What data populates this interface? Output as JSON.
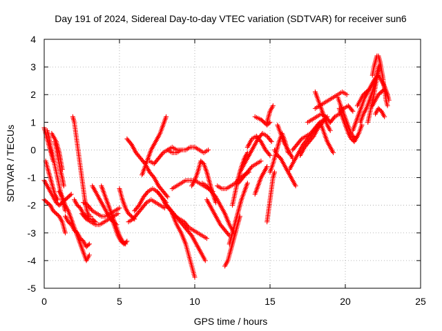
{
  "chart_data": {
    "type": "scatter",
    "title": "Day 191 of 2024, Sidereal Day-to-day VTEC variation (SDTVAR) for receiver sun6",
    "xlabel": "GPS time / hours",
    "ylabel": "SDTVAR / TECUs",
    "xlim": [
      0,
      25
    ],
    "ylim": [
      -5,
      4
    ],
    "xticks": [
      "0",
      "5",
      "10",
      "15",
      "20",
      "25"
    ],
    "yticks": [
      "-5",
      "-4",
      "-3",
      "-2",
      "-1",
      "0",
      "1",
      "2",
      "3",
      "4"
    ],
    "grid": true,
    "marker": "plus",
    "color": "#ff0000",
    "series": [
      {
        "x": [
          0,
          0.2,
          0.4,
          0.6,
          0.8,
          1.0,
          1.2,
          1.4,
          1.6,
          1.8
        ],
        "y": [
          -1.1,
          -1.3,
          -1.5,
          -1.7,
          -1.9,
          -2.0,
          -1.9,
          -1.8,
          -1.7,
          -1.6
        ]
      },
      {
        "x": [
          0,
          0.2,
          0.4,
          0.6,
          0.8,
          1.0,
          1.2,
          1.4
        ],
        "y": [
          -1.8,
          -1.9,
          -2.0,
          -2.2,
          -2.3,
          -2.4,
          -2.6,
          -3.0
        ]
      },
      {
        "x": [
          0.2,
          0.3,
          0.4,
          0.6,
          0.8,
          1.0,
          1.2,
          1.4
        ],
        "y": [
          0.7,
          0.5,
          0.2,
          -0.3,
          -0.8,
          -1.3,
          -1.8,
          -2.2
        ]
      },
      {
        "x": [
          0,
          0.1,
          0.2,
          0.3,
          0.4,
          0.5,
          0.6
        ],
        "y": [
          0.8,
          0.6,
          0.4,
          0.2,
          0,
          -0.2,
          -0.4
        ]
      },
      {
        "x": [
          0.1,
          0.3,
          0.5,
          0.7,
          0.9
        ],
        "y": [
          -0.4,
          -0.8,
          -1.2,
          -1.6,
          -1.8
        ]
      },
      {
        "x": [
          0.5,
          0.6,
          0.7,
          0.8,
          0.9,
          1.0,
          1.1,
          1.2
        ],
        "y": [
          0.6,
          0.5,
          0.4,
          0.3,
          0.1,
          -0.1,
          -0.4,
          -0.7
        ]
      },
      {
        "x": [
          0.7,
          0.8,
          0.9,
          1.0,
          1.1,
          1.2,
          1.3
        ],
        "y": [
          0.3,
          0.1,
          -0.2,
          -0.5,
          -0.8,
          -1.0,
          -1.3
        ]
      },
      {
        "x": [
          1.0,
          1.2,
          1.4,
          1.6,
          1.8,
          2.0,
          2.2,
          2.4,
          2.6,
          2.8,
          3.0
        ],
        "y": [
          -1.5,
          -1.7,
          -2.0,
          -2.2,
          -2.5,
          -2.8,
          -3.1,
          -3.4,
          -3.7,
          -4.0,
          -3.8
        ]
      },
      {
        "x": [
          1.4,
          1.6,
          1.8,
          2.0,
          2.2,
          2.4,
          2.6,
          2.8,
          3.0
        ],
        "y": [
          -2.4,
          -2.6,
          -2.7,
          -2.9,
          -3.0,
          -3.2,
          -3.3,
          -3.5,
          -3.4
        ]
      },
      {
        "x": [
          1.9,
          2.0,
          2.1,
          2.2,
          2.3,
          2.4,
          2.5,
          2.6,
          2.7,
          2.8,
          2.9,
          3.0,
          3.1
        ],
        "y": [
          1.2,
          1.0,
          0.6,
          0.2,
          -0.2,
          -0.6,
          -1.0,
          -1.4,
          -1.8,
          -2.1,
          -2.3,
          -2.4,
          -2.4
        ]
      },
      {
        "x": [
          2.0,
          2.2,
          2.4,
          2.6,
          2.8,
          3.0,
          3.2,
          3.4
        ],
        "y": [
          -1.8,
          -2.0,
          -2.1,
          -2.3,
          -2.4,
          -2.5,
          -2.5,
          -2.6
        ]
      },
      {
        "x": [
          2.5,
          2.8,
          3.1,
          3.4,
          3.7,
          4.0,
          4.3,
          4.6,
          4.9
        ],
        "y": [
          -2.3,
          -2.5,
          -2.6,
          -2.7,
          -2.7,
          -2.6,
          -2.5,
          -2.4,
          -2.3
        ]
      },
      {
        "x": [
          2.6,
          2.9,
          3.2,
          3.5,
          3.8,
          4.1,
          4.4,
          4.7,
          5.0
        ],
        "y": [
          -1.9,
          -2.0,
          -2.2,
          -2.3,
          -2.4,
          -2.4,
          -2.3,
          -2.2,
          -2.1
        ]
      },
      {
        "x": [
          3.2,
          3.4,
          3.6,
          3.8,
          4.0,
          4.2,
          4.4,
          4.6,
          4.8
        ],
        "y": [
          -1.3,
          -1.5,
          -1.7,
          -1.9,
          -2.1,
          -2.3,
          -2.5,
          -2.6,
          -2.7
        ]
      },
      {
        "x": [
          3.8,
          4.0,
          4.2,
          4.4,
          4.6,
          4.8,
          5.0,
          5.2,
          5.4
        ],
        "y": [
          -1.3,
          -1.6,
          -1.9,
          -2.2,
          -2.5,
          -2.8,
          -3.1,
          -3.3,
          -3.4
        ]
      },
      {
        "x": [
          4.5,
          4.7,
          4.9,
          5.1,
          5.3,
          5.5
        ],
        "y": [
          -2.5,
          -2.8,
          -3.1,
          -3.3,
          -3.4,
          -3.3
        ]
      },
      {
        "x": [
          5.0,
          5.2,
          5.4,
          5.6,
          5.8,
          6.0
        ],
        "y": [
          -1.4,
          -1.8,
          -2.1,
          -2.3,
          -2.4,
          -2.5
        ]
      },
      {
        "x": [
          5.5,
          5.8,
          6.1,
          6.4,
          6.7,
          7.0,
          7.3,
          7.6,
          7.9,
          8.2
        ],
        "y": [
          0.4,
          0.2,
          -0.1,
          -0.3,
          -0.5,
          -0.8,
          -1.0,
          -1.3,
          -1.5,
          -1.7
        ]
      },
      {
        "x": [
          5.6,
          5.9,
          6.2,
          6.5,
          6.8,
          7.1,
          7.4,
          7.7,
          8.0
        ],
        "y": [
          -2.6,
          -2.5,
          -2.3,
          -2.1,
          -1.9,
          -1.8,
          -1.9,
          -2.0,
          -2.1
        ]
      },
      {
        "x": [
          6.0,
          6.3,
          6.6,
          6.9,
          7.2,
          7.5,
          7.8,
          8.1
        ],
        "y": [
          -2.2,
          -2.0,
          -1.7,
          -1.5,
          -1.4,
          -1.5,
          -1.7,
          -1.9
        ]
      },
      {
        "x": [
          6.5,
          6.7,
          6.9,
          7.1,
          7.3,
          7.5,
          7.7,
          7.9,
          8.1
        ],
        "y": [
          -0.9,
          -0.6,
          -0.3,
          0,
          0.2,
          0.4,
          0.6,
          0.9,
          1.2
        ]
      },
      {
        "x": [
          7.0,
          7.3,
          7.6,
          7.9,
          8.2,
          8.5,
          8.8,
          9.1
        ],
        "y": [
          -0.4,
          -0.5,
          -0.3,
          -0.1,
          0,
          0.1,
          0.0,
          0.0
        ]
      },
      {
        "x": [
          7.5,
          7.8,
          8.1,
          8.4,
          8.7,
          9.0,
          9.3,
          9.6,
          9.9,
          10.2,
          10.5,
          10.8
        ],
        "y": [
          -1.5,
          -1.7,
          -2.0,
          -2.2,
          -2.4,
          -2.5,
          -2.6,
          -2.8,
          -2.9,
          -3.0,
          -3.1,
          -3.2
        ]
      },
      {
        "x": [
          8.0,
          8.3,
          8.6,
          8.9,
          9.2,
          9.5,
          9.8,
          10.1,
          10.4,
          10.7
        ],
        "y": [
          -1.9,
          -2.1,
          -2.3,
          -2.5,
          -2.7,
          -2.9,
          -3.1,
          -3.4,
          -3.7,
          -4.0
        ]
      },
      {
        "x": [
          8.5,
          8.8,
          9.1,
          9.4,
          9.7,
          10.0
        ],
        "y": [
          -2.3,
          -2.7,
          -3.0,
          -3.4,
          -4.0,
          -4.6
        ]
      },
      {
        "x": [
          8.2,
          8.5,
          8.8,
          9.1,
          9.4,
          9.7,
          10.0,
          10.3,
          10.6,
          10.9
        ],
        "y": [
          0.0,
          -0.1,
          -0.1,
          0.0,
          0.0,
          0.1,
          0.1,
          0.0,
          -0.1,
          0.0
        ]
      },
      {
        "x": [
          8.5,
          8.8,
          9.1,
          9.4,
          9.7,
          10.0,
          10.3,
          10.6,
          10.9,
          11.2
        ],
        "y": [
          -1.4,
          -1.3,
          -1.2,
          -1.1,
          -1.1,
          -1.1,
          -1.2,
          -1.3,
          -1.4,
          -1.5
        ]
      },
      {
        "x": [
          9.8,
          10.0,
          10.2,
          10.4,
          10.6,
          10.8,
          11.0,
          11.2,
          11.4
        ],
        "y": [
          -1.3,
          -1.1,
          -0.8,
          -0.4,
          -0.5,
          -0.8,
          -1.2,
          -1.6,
          -1.9
        ]
      },
      {
        "x": [
          10.5,
          10.8,
          11.1,
          11.4,
          11.7,
          12.0,
          12.3,
          12.6
        ],
        "y": [
          -1.2,
          -1.3,
          -1.5,
          -1.7,
          -2.0,
          -2.3,
          -2.7,
          -3.0
        ]
      },
      {
        "x": [
          10.8,
          11.1,
          11.4,
          11.7,
          12.0,
          12.3
        ],
        "y": [
          -1.8,
          -2.1,
          -2.4,
          -2.7,
          -2.9,
          -3.1
        ]
      },
      {
        "x": [
          11.5,
          11.8,
          12.1,
          12.4,
          12.7,
          13.0,
          13.3,
          13.6
        ],
        "y": [
          -1.3,
          -1.4,
          -1.4,
          -1.3,
          -1.2,
          -1.0,
          -0.9,
          -0.8
        ]
      },
      {
        "x": [
          12.0,
          12.2,
          12.4,
          12.6,
          12.8,
          13.0
        ],
        "y": [
          -4.2,
          -4.0,
          -3.6,
          -3.2,
          -2.8,
          -2.4
        ]
      },
      {
        "x": [
          12.3,
          12.5,
          12.7,
          12.9,
          13.1,
          13.3,
          13.5
        ],
        "y": [
          -3.4,
          -3.0,
          -2.6,
          -2.2,
          -1.8,
          -1.5,
          -1.2
        ]
      },
      {
        "x": [
          12.5,
          12.7,
          12.9,
          13.1,
          13.3,
          13.5
        ],
        "y": [
          -2.0,
          -1.5,
          -1.0,
          -0.6,
          -0.3,
          -0.1
        ]
      },
      {
        "x": [
          12.9,
          13.2,
          13.5,
          13.8,
          14.1,
          14.4
        ],
        "y": [
          -1.2,
          -1.0,
          -0.8,
          -0.6,
          -0.5,
          -0.4
        ]
      },
      {
        "x": [
          13.0,
          13.3,
          13.6,
          13.9,
          14.2,
          14.5,
          14.8,
          15.1
        ],
        "y": [
          -0.8,
          -0.5,
          -0.2,
          0.1,
          0.4,
          0.6,
          0.5,
          0.3
        ]
      },
      {
        "x": [
          13.5,
          13.8,
          14.1,
          14.4,
          14.7,
          15.0
        ],
        "y": [
          0.1,
          0.4,
          0.5,
          0.3,
          0,
          -0.2
        ]
      },
      {
        "x": [
          14.0,
          14.2,
          14.4,
          14.6,
          14.8,
          15.0
        ],
        "y": [
          1.2,
          1.15,
          1.1,
          1.0,
          0.9,
          1.0
        ]
      },
      {
        "x": [
          14.8,
          14.9,
          15.0,
          15.1,
          15.2
        ],
        "y": [
          1.0,
          1.2,
          1.4,
          1.5,
          1.6
        ]
      },
      {
        "x": [
          14.0,
          14.2,
          14.4,
          14.6,
          14.8
        ],
        "y": [
          -1.6,
          -1.3,
          -1.0,
          -0.8,
          -0.6
        ]
      },
      {
        "x": [
          14.8,
          14.9,
          15.0,
          15.1,
          15.2,
          15.3
        ],
        "y": [
          -2.6,
          -2.2,
          -1.8,
          -1.4,
          -1.0,
          -0.8
        ]
      },
      {
        "x": [
          15.0,
          15.2,
          15.4,
          15.6,
          15.8,
          16.0,
          16.2
        ],
        "y": [
          -0.8,
          -0.5,
          -0.1,
          0.3,
          0.6,
          0.3,
          -0.1
        ]
      },
      {
        "x": [
          15.3,
          15.5,
          15.7,
          15.9,
          16.1,
          16.3,
          16.5,
          16.7
        ],
        "y": [
          0.0,
          -0.2,
          -0.3,
          -0.5,
          -0.7,
          -0.9,
          -1.1,
          -1.3
        ]
      },
      {
        "x": [
          15.5,
          15.7,
          15.9,
          16.1,
          16.3,
          16.5
        ],
        "y": [
          0.9,
          0.6,
          0.3,
          0.1,
          -0.1,
          -0.3
        ]
      },
      {
        "x": [
          16.3,
          16.6,
          16.9,
          17.2,
          17.5,
          17.8,
          18.1,
          18.4
        ],
        "y": [
          -0.7,
          -0.4,
          -0.1,
          0.2,
          0.4,
          0.6,
          0.8,
          1.0
        ]
      },
      {
        "x": [
          16.5,
          16.8,
          17.1,
          17.4,
          17.7,
          18.0,
          18.3,
          18.6
        ],
        "y": [
          0.0,
          0.2,
          0.4,
          0.5,
          0.6,
          0.8,
          1.0,
          1.1
        ]
      },
      {
        "x": [
          17.0,
          17.3,
          17.6,
          17.9,
          18.2,
          18.5,
          18.8
        ],
        "y": [
          -0.2,
          0.1,
          0.3,
          0.5,
          0.8,
          1.0,
          1.2
        ]
      },
      {
        "x": [
          17.5,
          17.8,
          18.1,
          18.4,
          18.7,
          19.0
        ],
        "y": [
          1.0,
          1.1,
          1.2,
          1.3,
          1.2,
          1.0
        ]
      },
      {
        "x": [
          18.0,
          18.3,
          18.6,
          18.9,
          19.2,
          19.5,
          19.8,
          20.1
        ],
        "y": [
          1.5,
          1.6,
          1.7,
          1.8,
          1.9,
          2.0,
          2.1,
          2.0
        ]
      },
      {
        "x": [
          18.0,
          18.2,
          18.4,
          18.6,
          18.8,
          19.0
        ],
        "y": [
          2.1,
          1.8,
          1.5,
          1.2,
          0.9,
          0.7
        ]
      },
      {
        "x": [
          18.4,
          18.6,
          18.8,
          19.0,
          19.2
        ],
        "y": [
          0.9,
          0.6,
          0.3,
          0.1,
          -0.1
        ]
      },
      {
        "x": [
          19.0,
          19.3,
          19.6,
          19.9,
          20.2,
          20.5
        ],
        "y": [
          1.0,
          1.2,
          1.3,
          1.5,
          1.6,
          1.4
        ]
      },
      {
        "x": [
          19.5,
          19.7,
          19.9,
          20.1,
          20.3,
          20.5,
          20.7,
          20.9,
          21.1
        ],
        "y": [
          1.9,
          1.6,
          1.3,
          1.0,
          0.7,
          0.5,
          0.4,
          0.6,
          0.9
        ]
      },
      {
        "x": [
          19.6,
          19.8,
          20.0,
          20.2,
          20.4,
          20.6,
          20.8
        ],
        "y": [
          1.5,
          1.2,
          0.9,
          0.6,
          0.4,
          0.3,
          0.5
        ]
      },
      {
        "x": [
          20.5,
          20.7,
          20.9,
          21.1,
          21.3,
          21.5,
          21.7,
          21.9
        ],
        "y": [
          0.7,
          1.0,
          1.3,
          1.6,
          1.9,
          2.1,
          2.3,
          2.5
        ]
      },
      {
        "x": [
          20.8,
          21.0,
          21.2,
          21.4,
          21.6,
          21.8,
          22.0
        ],
        "y": [
          1.6,
          1.8,
          2.0,
          2.1,
          2.2,
          2.4,
          2.6
        ]
      },
      {
        "x": [
          21.0,
          21.2,
          21.4,
          21.6,
          21.8,
          22.0,
          22.2
        ],
        "y": [
          1.0,
          1.3,
          1.5,
          1.8,
          2.1,
          2.5,
          3.0
        ]
      },
      {
        "x": [
          21.5,
          21.7,
          21.9,
          22.1,
          22.3
        ],
        "y": [
          1.0,
          1.5,
          2.0,
          2.6,
          3.1
        ]
      },
      {
        "x": [
          21.8,
          21.9,
          22.0,
          22.1,
          22.2,
          22.3,
          22.4,
          22.5,
          22.6,
          22.7,
          22.8
        ],
        "y": [
          2.7,
          3.0,
          3.2,
          3.4,
          3.4,
          3.2,
          2.9,
          2.6,
          2.2,
          1.8,
          1.6
        ]
      },
      {
        "x": [
          21.8,
          22.0,
          22.2,
          22.4,
          22.6,
          22.8
        ],
        "y": [
          1.6,
          1.8,
          2.0,
          2.1,
          2.2,
          2.0
        ]
      },
      {
        "x": [
          22.2,
          22.4,
          22.6,
          22.8,
          22.9
        ],
        "y": [
          2.7,
          2.5,
          2.3,
          2.0,
          1.8
        ]
      },
      {
        "x": [
          22.0,
          22.2,
          22.4,
          22.6
        ],
        "y": [
          1.3,
          1.5,
          1.4,
          1.2
        ]
      }
    ]
  }
}
